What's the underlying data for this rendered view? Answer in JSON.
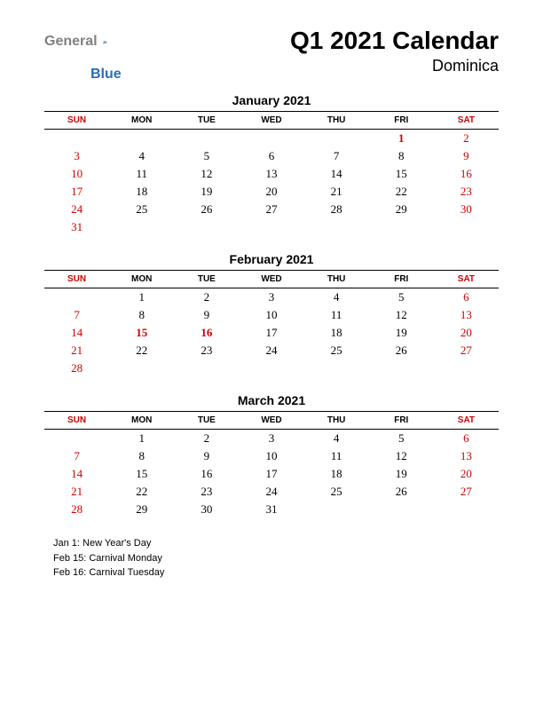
{
  "logo": {
    "text1": "General",
    "text2": "Blue",
    "accent": "#2a6db5",
    "gray": "#808080"
  },
  "title": "Q1 2021 Calendar",
  "subtitle": "Dominica",
  "colors": {
    "weekend": "#cc0000",
    "text": "#000000",
    "bg": "#ffffff"
  },
  "day_headers": [
    "SUN",
    "MON",
    "TUE",
    "WED",
    "THU",
    "FRI",
    "SAT"
  ],
  "months": [
    {
      "name": "January 2021",
      "weeks": [
        [
          "",
          "",
          "",
          "",
          "",
          "1",
          "2"
        ],
        [
          "3",
          "4",
          "5",
          "6",
          "7",
          "8",
          "9"
        ],
        [
          "10",
          "11",
          "12",
          "13",
          "14",
          "15",
          "16"
        ],
        [
          "17",
          "18",
          "19",
          "20",
          "21",
          "22",
          "23"
        ],
        [
          "24",
          "25",
          "26",
          "27",
          "28",
          "29",
          "30"
        ],
        [
          "31",
          "",
          "",
          "",
          "",
          "",
          ""
        ]
      ],
      "holidays": [
        "1"
      ]
    },
    {
      "name": "February 2021",
      "weeks": [
        [
          "",
          "1",
          "2",
          "3",
          "4",
          "5",
          "6"
        ],
        [
          "7",
          "8",
          "9",
          "10",
          "11",
          "12",
          "13"
        ],
        [
          "14",
          "15",
          "16",
          "17",
          "18",
          "19",
          "20"
        ],
        [
          "21",
          "22",
          "23",
          "24",
          "25",
          "26",
          "27"
        ],
        [
          "28",
          "",
          "",
          "",
          "",
          "",
          ""
        ]
      ],
      "holidays": [
        "15",
        "16"
      ]
    },
    {
      "name": "March 2021",
      "weeks": [
        [
          "",
          "1",
          "2",
          "3",
          "4",
          "5",
          "6"
        ],
        [
          "7",
          "8",
          "9",
          "10",
          "11",
          "12",
          "13"
        ],
        [
          "14",
          "15",
          "16",
          "17",
          "18",
          "19",
          "20"
        ],
        [
          "21",
          "22",
          "23",
          "24",
          "25",
          "26",
          "27"
        ],
        [
          "28",
          "29",
          "30",
          "31",
          "",
          "",
          ""
        ]
      ],
      "holidays": []
    }
  ],
  "holiday_list": [
    "Jan 1: New Year's Day",
    "Feb 15: Carnival Monday",
    "Feb 16: Carnival Tuesday"
  ]
}
